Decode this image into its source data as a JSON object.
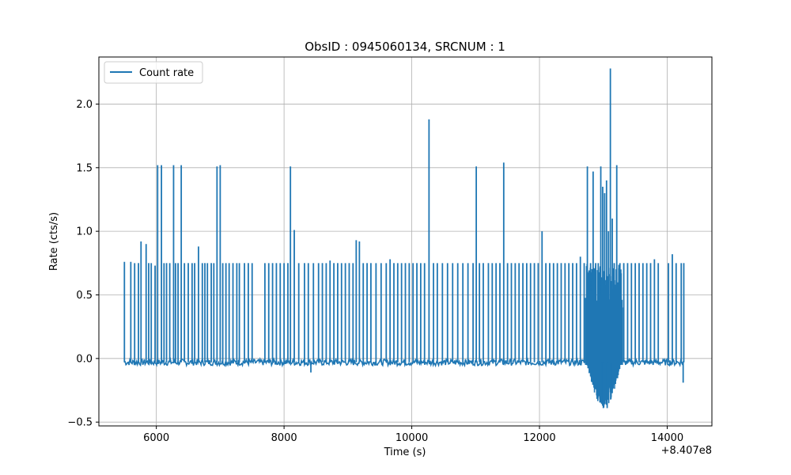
{
  "chart_data": {
    "type": "line",
    "title": "ObsID : 0945060134, SRCNUM : 1",
    "xlabel": "Time (s)",
    "ylabel": "Rate (cts/s)",
    "x_offset_label": "+8.407e8",
    "xlim": [
      5100,
      14700
    ],
    "ylim": [
      -0.53,
      2.37
    ],
    "xticks": [
      6000,
      8000,
      10000,
      12000,
      14000
    ],
    "xtick_labels": [
      "6000",
      "8000",
      "10000",
      "12000",
      "14000"
    ],
    "yticks": [
      -0.5,
      0.0,
      0.5,
      1.0,
      1.5,
      2.0
    ],
    "ytick_labels": [
      "−0.5",
      "0.0",
      "0.5",
      "1.0",
      "1.5",
      "2.0"
    ],
    "grid": true,
    "legend": {
      "position": "top-left",
      "entries": [
        "Count rate"
      ]
    },
    "series": [
      {
        "name": "Count rate",
        "color": "#1f77b4",
        "baseline": -0.03,
        "x_range": [
          5500,
          14270
        ],
        "spikes": [
          [
            5500,
            0.76
          ],
          [
            5600,
            0.76
          ],
          [
            5660,
            0.75
          ],
          [
            5720,
            0.75
          ],
          [
            5760,
            0.92
          ],
          [
            5840,
            0.9
          ],
          [
            5880,
            0.75
          ],
          [
            5920,
            0.75
          ],
          [
            5980,
            0.73
          ],
          [
            6020,
            1.52
          ],
          [
            6080,
            1.52
          ],
          [
            6120,
            0.75
          ],
          [
            6160,
            0.75
          ],
          [
            6210,
            0.75
          ],
          [
            6270,
            1.52
          ],
          [
            6300,
            0.75
          ],
          [
            6340,
            0.75
          ],
          [
            6390,
            1.52
          ],
          [
            6440,
            0.75
          ],
          [
            6500,
            0.75
          ],
          [
            6560,
            0.75
          ],
          [
            6600,
            0.75
          ],
          [
            6660,
            0.88
          ],
          [
            6720,
            0.75
          ],
          [
            6760,
            0.75
          ],
          [
            6800,
            0.75
          ],
          [
            6860,
            0.75
          ],
          [
            6900,
            0.75
          ],
          [
            6950,
            1.51
          ],
          [
            7000,
            1.52
          ],
          [
            7040,
            0.75
          ],
          [
            7090,
            0.75
          ],
          [
            7140,
            0.75
          ],
          [
            7200,
            0.75
          ],
          [
            7260,
            0.75
          ],
          [
            7300,
            0.75
          ],
          [
            7380,
            0.75
          ],
          [
            7440,
            0.75
          ],
          [
            7500,
            0.75
          ],
          [
            7700,
            0.75
          ],
          [
            7760,
            0.75
          ],
          [
            7820,
            0.75
          ],
          [
            7880,
            0.75
          ],
          [
            7940,
            0.75
          ],
          [
            8000,
            0.75
          ],
          [
            8060,
            0.75
          ],
          [
            8100,
            1.51
          ],
          [
            8160,
            1.01
          ],
          [
            8230,
            0.75
          ],
          [
            8320,
            0.75
          ],
          [
            8380,
            0.75
          ],
          [
            8460,
            0.75
          ],
          [
            8540,
            0.75
          ],
          [
            8600,
            0.75
          ],
          [
            8660,
            0.75
          ],
          [
            8720,
            0.77
          ],
          [
            8780,
            0.75
          ],
          [
            8840,
            0.75
          ],
          [
            8900,
            0.75
          ],
          [
            8960,
            0.75
          ],
          [
            9020,
            0.75
          ],
          [
            9080,
            0.75
          ],
          [
            9130,
            0.93
          ],
          [
            9180,
            0.92
          ],
          [
            9240,
            0.75
          ],
          [
            9300,
            0.75
          ],
          [
            9360,
            0.75
          ],
          [
            9440,
            0.75
          ],
          [
            9520,
            0.75
          ],
          [
            9600,
            0.75
          ],
          [
            9660,
            0.78
          ],
          [
            9720,
            0.75
          ],
          [
            9780,
            0.75
          ],
          [
            9840,
            0.75
          ],
          [
            9900,
            0.75
          ],
          [
            9960,
            0.75
          ],
          [
            10020,
            0.75
          ],
          [
            10080,
            0.75
          ],
          [
            10140,
            0.75
          ],
          [
            10200,
            0.75
          ],
          [
            10270,
            1.88
          ],
          [
            10340,
            0.75
          ],
          [
            10400,
            0.75
          ],
          [
            10480,
            0.75
          ],
          [
            10560,
            0.75
          ],
          [
            10640,
            0.75
          ],
          [
            10720,
            0.75
          ],
          [
            10800,
            0.75
          ],
          [
            10880,
            0.75
          ],
          [
            10960,
            0.75
          ],
          [
            11010,
            1.51
          ],
          [
            11060,
            0.75
          ],
          [
            11120,
            0.75
          ],
          [
            11200,
            0.75
          ],
          [
            11260,
            0.75
          ],
          [
            11320,
            0.75
          ],
          [
            11380,
            0.75
          ],
          [
            11440,
            1.54
          ],
          [
            11500,
            0.75
          ],
          [
            11560,
            0.75
          ],
          [
            11620,
            0.75
          ],
          [
            11680,
            0.75
          ],
          [
            11740,
            0.75
          ],
          [
            11800,
            0.75
          ],
          [
            11860,
            0.75
          ],
          [
            11920,
            0.75
          ],
          [
            11980,
            0.75
          ],
          [
            12040,
            1.0
          ],
          [
            12100,
            0.75
          ],
          [
            12160,
            0.75
          ],
          [
            12220,
            0.75
          ],
          [
            12280,
            0.75
          ],
          [
            12340,
            0.75
          ],
          [
            12400,
            0.75
          ],
          [
            12460,
            0.75
          ],
          [
            12520,
            0.75
          ],
          [
            12580,
            0.75
          ],
          [
            12640,
            0.8
          ],
          [
            12700,
            0.75
          ],
          [
            12750,
            1.51
          ],
          [
            12800,
            0.75
          ],
          [
            12840,
            1.47
          ],
          [
            12880,
            0.75
          ],
          [
            12920,
            0.75
          ],
          [
            12960,
            1.51
          ],
          [
            12990,
            1.35
          ],
          [
            13020,
            1.3
          ],
          [
            13050,
            1.4
          ],
          [
            13080,
            1.0
          ],
          [
            13110,
            2.28
          ],
          [
            13140,
            1.1
          ],
          [
            13170,
            0.75
          ],
          [
            13210,
            1.52
          ],
          [
            13260,
            0.75
          ],
          [
            13320,
            0.75
          ],
          [
            13380,
            0.75
          ],
          [
            13440,
            0.75
          ],
          [
            13500,
            0.75
          ],
          [
            13560,
            0.75
          ],
          [
            13620,
            0.75
          ],
          [
            13680,
            0.75
          ],
          [
            13740,
            0.75
          ],
          [
            13800,
            0.78
          ],
          [
            13860,
            0.75
          ],
          [
            14020,
            0.75
          ],
          [
            14080,
            0.82
          ],
          [
            14140,
            0.75
          ],
          [
            14220,
            0.75
          ],
          [
            14260,
            0.75
          ]
        ],
        "dense_region": {
          "x_range": [
            12720,
            13300
          ],
          "low": -0.39,
          "high": 0.75
        },
        "dips": [
          [
            8420,
            -0.11
          ],
          [
            12980,
            -0.34
          ],
          [
            13000,
            -0.39
          ],
          [
            13060,
            -0.39
          ],
          [
            13120,
            -0.3
          ],
          [
            14250,
            -0.19
          ]
        ]
      }
    ]
  }
}
